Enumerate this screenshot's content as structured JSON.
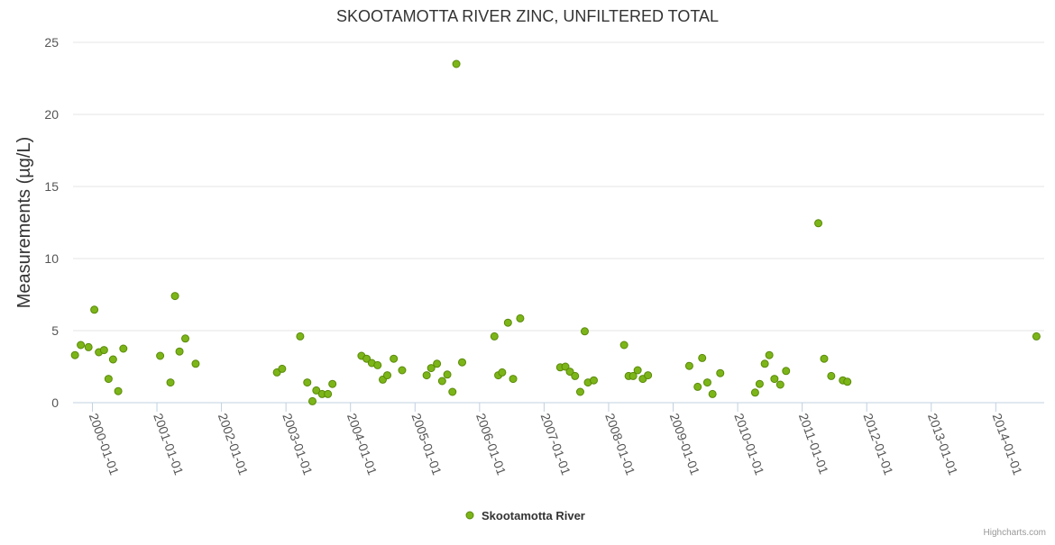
{
  "chart_data": {
    "type": "scatter",
    "title": "SKOOTAMOTTA RIVER ZINC, UNFILTERED TOTAL",
    "xlabel": "",
    "ylabel": "Measurements (µg/L)",
    "xlim": [
      1999.7,
      2014.75
    ],
    "ylim": [
      0,
      25
    ],
    "y_ticks": [
      0,
      5,
      10,
      15,
      20,
      25
    ],
    "x_ticks": [
      {
        "value": 2000,
        "label": "2000-01-01"
      },
      {
        "value": 2001,
        "label": "2001-01-01"
      },
      {
        "value": 2002,
        "label": "2002-01-01"
      },
      {
        "value": 2003,
        "label": "2003-01-01"
      },
      {
        "value": 2004,
        "label": "2004-01-01"
      },
      {
        "value": 2005,
        "label": "2005-01-01"
      },
      {
        "value": 2006,
        "label": "2006-01-01"
      },
      {
        "value": 2007,
        "label": "2007-01-01"
      },
      {
        "value": 2008,
        "label": "2008-01-01"
      },
      {
        "value": 2009,
        "label": "2009-01-01"
      },
      {
        "value": 2010,
        "label": "2010-01-01"
      },
      {
        "value": 2011,
        "label": "2011-01-01"
      },
      {
        "value": 2012,
        "label": "2012-01-01"
      },
      {
        "value": 2013,
        "label": "2013-01-01"
      },
      {
        "value": 2014,
        "label": "2014-01-01"
      }
    ],
    "grid": true,
    "legend_position": "bottom-center",
    "series": [
      {
        "name": "Skootamotta River",
        "color": "#7cb518",
        "stroke": "#5a8a0a",
        "x": [
          1999.73,
          1999.82,
          1999.94,
          2000.03,
          2000.1,
          2000.18,
          2000.25,
          2000.32,
          2000.4,
          2000.48,
          2001.05,
          2001.21,
          2001.28,
          2001.35,
          2001.44,
          2001.6,
          2002.86,
          2002.94,
          2003.22,
          2003.33,
          2003.41,
          2003.47,
          2003.56,
          2003.65,
          2003.72,
          2004.17,
          2004.25,
          2004.33,
          2004.42,
          2004.5,
          2004.57,
          2004.67,
          2004.8,
          2005.18,
          2005.25,
          2005.34,
          2005.42,
          2005.5,
          2005.58,
          2005.64,
          2005.73,
          2006.23,
          2006.29,
          2006.35,
          2006.44,
          2006.52,
          2006.63,
          2007.25,
          2007.33,
          2007.4,
          2007.48,
          2007.56,
          2007.63,
          2007.68,
          2007.77,
          2008.24,
          2008.31,
          2008.38,
          2008.45,
          2008.53,
          2008.61,
          2009.25,
          2009.38,
          2009.45,
          2009.53,
          2009.61,
          2009.73,
          2010.27,
          2010.34,
          2010.42,
          2010.49,
          2010.57,
          2010.66,
          2010.75,
          2011.25,
          2011.34,
          2011.45,
          2011.63,
          2011.7,
          2014.63
        ],
        "y": [
          3.3,
          4.0,
          3.85,
          6.45,
          3.5,
          3.65,
          1.65,
          3.0,
          0.8,
          3.75,
          3.25,
          1.4,
          7.4,
          3.55,
          4.45,
          2.7,
          2.1,
          2.35,
          4.6,
          1.4,
          0.1,
          0.85,
          0.6,
          0.6,
          1.3,
          3.25,
          3.05,
          2.75,
          2.6,
          1.6,
          1.9,
          3.05,
          2.25,
          1.9,
          2.4,
          2.7,
          1.5,
          1.95,
          0.75,
          23.5,
          2.8,
          4.6,
          1.9,
          2.1,
          5.55,
          1.65,
          5.85,
          2.45,
          2.5,
          2.15,
          1.85,
          0.75,
          4.95,
          1.4,
          1.55,
          4.0,
          1.85,
          1.85,
          2.25,
          1.65,
          1.9,
          2.55,
          1.1,
          3.1,
          1.4,
          0.6,
          2.05,
          0.7,
          1.3,
          2.7,
          3.3,
          1.65,
          1.25,
          2.2,
          12.45,
          3.05,
          1.85,
          1.55,
          1.45,
          4.6
        ]
      }
    ]
  },
  "credits": "Highcharts.com"
}
